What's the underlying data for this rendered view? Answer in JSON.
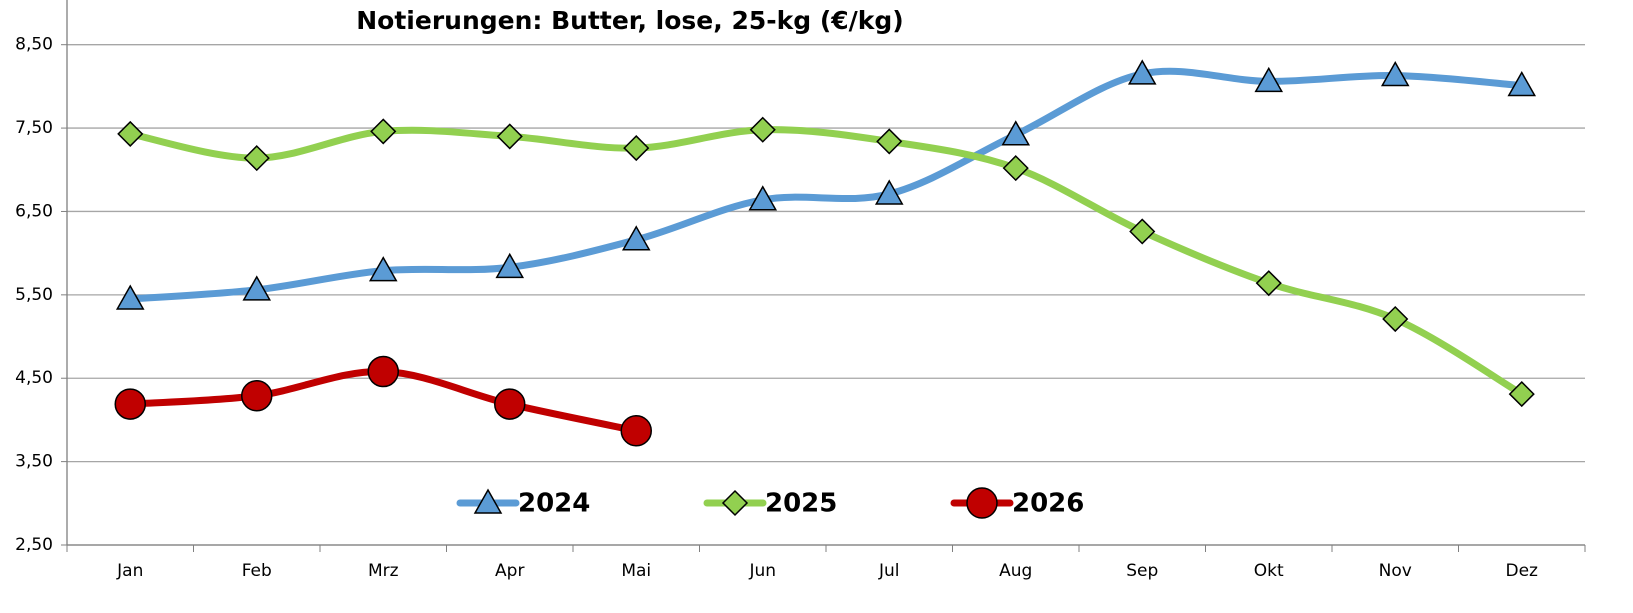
{
  "chart_data": {
    "type": "line",
    "title": "Notierungen: Butter, lose, 25-kg (€/kg)",
    "categories": [
      "Jan",
      "Feb",
      "Mrz",
      "Apr",
      "Mai",
      "Jun",
      "Jul",
      "Aug",
      "Sep",
      "Okt",
      "Nov",
      "Dez"
    ],
    "series": [
      {
        "name": "2024",
        "color": "#5b9bd5",
        "marker": "triangle",
        "values": [
          5.45,
          5.56,
          5.79,
          5.83,
          6.16,
          6.64,
          6.71,
          7.42,
          8.15,
          8.06,
          8.13,
          8.01
        ]
      },
      {
        "name": "2025",
        "color": "#92d050",
        "marker": "diamond",
        "values": [
          7.43,
          7.14,
          7.46,
          7.4,
          7.26,
          7.48,
          7.34,
          7.02,
          6.26,
          5.64,
          5.21,
          4.31
        ]
      },
      {
        "name": "2026",
        "color": "#c00000",
        "marker": "circle",
        "values": [
          4.19,
          4.29,
          4.58,
          4.19,
          3.87,
          null,
          null,
          null,
          null,
          null,
          null,
          null
        ]
      }
    ],
    "ylim": [
      2.5,
      9.0
    ],
    "yticks": [
      {
        "value": 2.5,
        "label": "2,50"
      },
      {
        "value": 3.5,
        "label": "3,50"
      },
      {
        "value": 4.5,
        "label": "4,50"
      },
      {
        "value": 5.5,
        "label": "5,50"
      },
      {
        "value": 6.5,
        "label": "6,50"
      },
      {
        "value": 7.5,
        "label": "7,50"
      },
      {
        "value": 8.5,
        "label": "8,50"
      }
    ],
    "grid": true,
    "legend": "bottom"
  }
}
